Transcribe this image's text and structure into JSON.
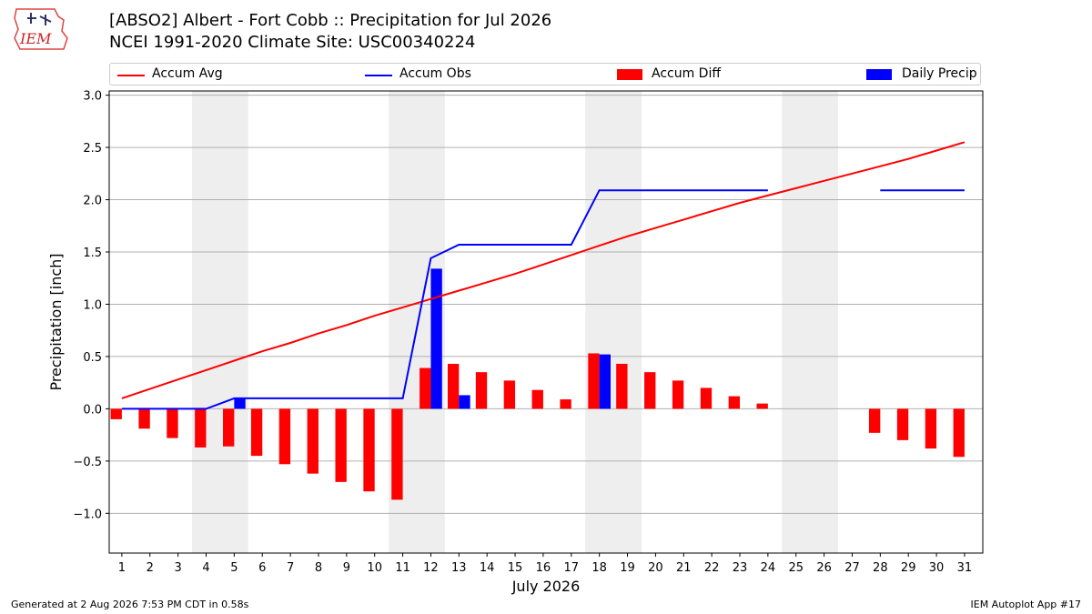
{
  "logo": {
    "text": "IEM"
  },
  "header": {
    "title_line1": "[ABSO2] Albert - Fort Cobb :: Precipitation for Jul 2026",
    "title_line2": "NCEI 1991-2020 Climate Site: USC00340224"
  },
  "legend": {
    "items": [
      {
        "label": "Accum Avg",
        "kind": "line",
        "color": "#ff0000"
      },
      {
        "label": "Accum Obs",
        "kind": "line",
        "color": "#0000ff"
      },
      {
        "label": "Accum Diff",
        "kind": "patch",
        "color": "#ff0000"
      },
      {
        "label": "Daily Precip",
        "kind": "patch",
        "color": "#0000ff"
      }
    ]
  },
  "footer": {
    "left": "Generated at 2 Aug 2026 7:53 PM CDT in 0.58s",
    "right": "IEM Autoplot App #17"
  },
  "chart_data": {
    "type": "bar",
    "xlabel": "July 2026",
    "ylabel": "Precipitation [inch]",
    "ylim": [
      -1.38,
      3.04
    ],
    "yticks": [
      -1.0,
      -0.5,
      0.0,
      0.5,
      1.0,
      1.5,
      2.0,
      2.5,
      3.0
    ],
    "ytick_labels": [
      "−1.0",
      "−0.5",
      "0.0",
      "0.5",
      "1.0",
      "1.5",
      "2.0",
      "2.5",
      "3.0"
    ],
    "days": [
      1,
      2,
      3,
      4,
      5,
      6,
      7,
      8,
      9,
      10,
      11,
      12,
      13,
      14,
      15,
      16,
      17,
      18,
      19,
      20,
      21,
      22,
      23,
      24,
      25,
      26,
      27,
      28,
      29,
      30,
      31
    ],
    "weekend_days": [
      4,
      5,
      11,
      12,
      18,
      19,
      25,
      26
    ],
    "grid": true,
    "legend_position": "top",
    "colors": {
      "avg": "#ff0000",
      "obs": "#0000ff",
      "diff": "#ff0000",
      "daily": "#0000ff",
      "weekend": "#eeeeee"
    },
    "series": [
      {
        "name": "Accum Avg",
        "type": "line",
        "values": [
          0.1,
          0.19,
          0.28,
          0.37,
          0.46,
          0.55,
          0.63,
          0.72,
          0.8,
          0.89,
          0.97,
          1.05,
          1.13,
          1.21,
          1.29,
          1.38,
          1.47,
          1.56,
          1.65,
          1.73,
          1.81,
          1.89,
          1.97,
          2.04,
          2.11,
          2.18,
          2.25,
          2.32,
          2.39,
          2.47,
          2.55
        ]
      },
      {
        "name": "Accum Obs",
        "type": "line",
        "values": [
          0.0,
          0.0,
          0.0,
          0.0,
          0.1,
          0.1,
          0.1,
          0.1,
          0.1,
          0.1,
          0.1,
          1.44,
          1.57,
          1.57,
          1.57,
          1.57,
          1.57,
          2.09,
          2.09,
          2.09,
          2.09,
          2.09,
          2.09,
          2.09,
          null,
          null,
          null,
          2.09,
          2.09,
          2.09,
          2.09
        ]
      },
      {
        "name": "Accum Diff",
        "type": "bar",
        "values": [
          -0.1,
          -0.19,
          -0.28,
          -0.37,
          -0.36,
          -0.45,
          -0.53,
          -0.62,
          -0.7,
          -0.79,
          -0.87,
          0.39,
          0.43,
          0.35,
          0.27,
          0.18,
          0.09,
          0.53,
          0.43,
          0.35,
          0.27,
          0.2,
          0.12,
          0.05,
          null,
          null,
          null,
          -0.23,
          -0.3,
          -0.38,
          -0.46
        ]
      },
      {
        "name": "Daily Precip",
        "type": "bar",
        "values": [
          0,
          0,
          0,
          0,
          0.1,
          0,
          0,
          0,
          0,
          0,
          0,
          1.34,
          0.13,
          0,
          0,
          0,
          0,
          0.52,
          0,
          0,
          0,
          0,
          0,
          0,
          null,
          null,
          null,
          0,
          0,
          0,
          0
        ]
      }
    ]
  }
}
